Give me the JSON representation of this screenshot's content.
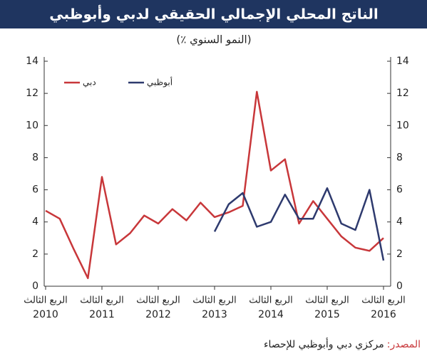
{
  "chart_data": {
    "type": "line",
    "title": "الناتج المحلي الإجمالي الحقيقي لدبي وأبوظبي",
    "subtitle": "(٪ النمو السنوي)",
    "x_tick_prefix": "الربع الثالث",
    "categories": [
      "2010",
      null,
      null,
      null,
      "2011",
      null,
      null,
      null,
      "2012",
      null,
      null,
      null,
      "2013",
      null,
      null,
      null,
      "2014",
      null,
      null,
      null,
      "2015",
      null,
      null,
      null,
      "2016"
    ],
    "series": [
      {
        "name": "دبي",
        "color": "#c8373a",
        "values": [
          4.7,
          4.2,
          2.3,
          0.5,
          6.8,
          2.6,
          3.3,
          4.4,
          3.9,
          4.8,
          4.1,
          5.2,
          4.3,
          4.6,
          5.0,
          12.1,
          7.2,
          7.9,
          3.9,
          5.3,
          4.2,
          3.1,
          2.4,
          2.2,
          3.0
        ]
      },
      {
        "name": "أبوظبي",
        "color": "#2e3a6e",
        "values": [
          null,
          null,
          null,
          null,
          null,
          null,
          null,
          null,
          null,
          null,
          null,
          null,
          3.4,
          5.1,
          5.8,
          3.7,
          4.0,
          5.7,
          4.2,
          4.2,
          6.1,
          3.9,
          3.5,
          6.0,
          1.6
        ]
      }
    ],
    "ylim": [
      0,
      14
    ],
    "yticks": [
      0,
      2,
      4,
      6,
      8,
      10,
      12,
      14
    ],
    "y2lim": [
      0,
      14
    ],
    "y2ticks": [
      0,
      2,
      4,
      6,
      8,
      10,
      12,
      14
    ],
    "grid": false,
    "source_label": "المصدر:",
    "source_text": "مركزي دبي وأبوظبي للإحصاء"
  }
}
